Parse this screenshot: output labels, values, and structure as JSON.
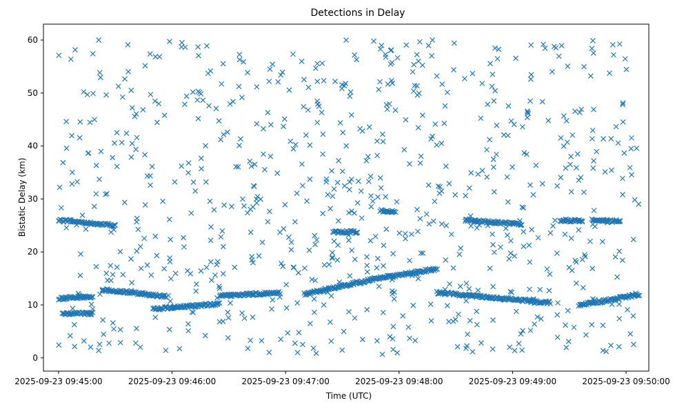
{
  "chart_data": {
    "type": "scatter",
    "title": "Detections in Delay",
    "xlabel": "Time (UTC)",
    "ylabel": "Bistatic Delay (km)",
    "marker": "x",
    "color": "#1f77b4",
    "grid": false,
    "legend": "none",
    "xlim": [
      "2025-09-23 09:44:52",
      "2025-09-23 09:50:12"
    ],
    "ylim": [
      -2.5,
      63
    ],
    "x_ticks": [
      "2025-09-23 09:45:00",
      "2025-09-23 09:46:00",
      "2025-09-23 09:47:00",
      "2025-09-23 09:48:00",
      "2025-09-23 09:49:00",
      "2025-09-23 09:50:00"
    ],
    "y_ticks": [
      "0",
      "10",
      "20",
      "30",
      "40",
      "50",
      "60"
    ],
    "series": [
      {
        "time_range": [
          "2025-09-23 09:45:00",
          "2025-09-23 09:50:07"
        ],
        "note_tracks": [
          {
            "t_start": "2025-09-23 09:45:00",
            "t_end": "2025-09-23 09:45:30",
            "delay_start": 26.0,
            "delay_end": 25.0
          },
          {
            "t_start": "2025-09-23 09:45:00",
            "t_end": "2025-09-23 09:45:18",
            "delay_start": 11.2,
            "delay_end": 11.6
          },
          {
            "t_start": "2025-09-23 09:45:02",
            "t_end": "2025-09-23 09:45:18",
            "delay_start": 8.3,
            "delay_end": 8.4
          },
          {
            "t_start": "2025-09-23 09:45:23",
            "t_end": "2025-09-23 09:45:57",
            "delay_start": 12.9,
            "delay_end": 11.6
          },
          {
            "t_start": "2025-09-23 09:45:50",
            "t_end": "2025-09-23 09:46:25",
            "delay_start": 9.2,
            "delay_end": 10.2
          },
          {
            "t_start": "2025-09-23 09:46:25",
            "t_end": "2025-09-23 09:46:57",
            "delay_start": 11.7,
            "delay_end": 12.3
          },
          {
            "t_start": "2025-09-23 09:47:10",
            "t_end": "2025-09-23 09:47:48",
            "delay_start": 12.0,
            "delay_end": 15.0
          },
          {
            "t_start": "2025-09-23 09:47:48",
            "t_end": "2025-09-23 09:48:20",
            "delay_start": 15.0,
            "delay_end": 16.8
          },
          {
            "t_start": "2025-09-23 09:48:20",
            "t_end": "2025-09-23 09:49:20",
            "delay_start": 12.3,
            "delay_end": 10.4
          },
          {
            "t_start": "2025-09-23 09:49:35",
            "t_end": "2025-09-23 09:50:07",
            "delay_start": 9.9,
            "delay_end": 12.0
          },
          {
            "t_start": "2025-09-23 09:48:35",
            "t_end": "2025-09-23 09:49:05",
            "delay_start": 26.0,
            "delay_end": 25.2
          },
          {
            "t_start": "2025-09-23 09:47:25",
            "t_end": "2025-09-23 09:47:38",
            "delay_start": 23.7,
            "delay_end": 23.8
          },
          {
            "t_start": "2025-09-23 09:47:50",
            "t_end": "2025-09-23 09:47:58",
            "delay_start": 27.8,
            "delay_end": 27.6
          },
          {
            "t_start": "2025-09-23 09:49:25",
            "t_end": "2025-09-23 09:49:37",
            "delay_start": 26.0,
            "delay_end": 25.8
          },
          {
            "t_start": "2025-09-23 09:49:42",
            "t_end": "2025-09-23 09:49:57",
            "delay_start": 26.0,
            "delay_end": 25.8
          }
        ],
        "scatter_count": 780,
        "scatter_delay_range": [
          0.5,
          60
        ]
      }
    ]
  }
}
